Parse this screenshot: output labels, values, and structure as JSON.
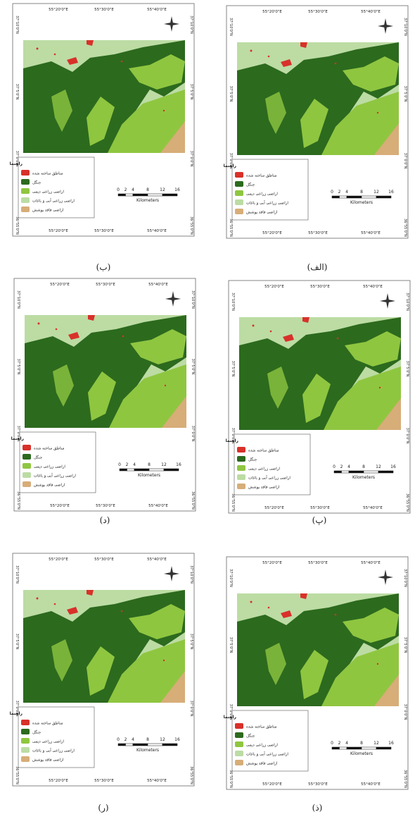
{
  "legend": {
    "title": "راهنما",
    "items": [
      {
        "label": "مناطق ساخته شده",
        "color": "#d8312a"
      },
      {
        "label": "جنگل",
        "color": "#2c6a1e"
      },
      {
        "label": "اراضی زراعی دیمی",
        "color": "#8fc640"
      },
      {
        "label": "اراضی زراعی آبی و باغات",
        "color": "#bcdca4"
      },
      {
        "label": "اراضی فاقد پوشش",
        "color": "#d7ad78"
      }
    ]
  },
  "scale": {
    "ticks": [
      "0",
      "2",
      "4",
      "8",
      "12",
      "16"
    ],
    "unit": "Kilometers"
  },
  "longitudes": [
    "55°20'0\"E",
    "55°30'0\"E",
    "55°40'0\"E"
  ],
  "latitudes": [
    "37°10'0\"N",
    "37°5'0\"N",
    "37°0'0\"N",
    "36°55'0\"N"
  ],
  "panels": [
    {
      "caption": "(ب)"
    },
    {
      "caption": "(الف)"
    },
    {
      "caption": "(د)"
    },
    {
      "caption": "(پ)"
    },
    {
      "caption": "(ر)"
    },
    {
      "caption": "(ذ)"
    }
  ]
}
